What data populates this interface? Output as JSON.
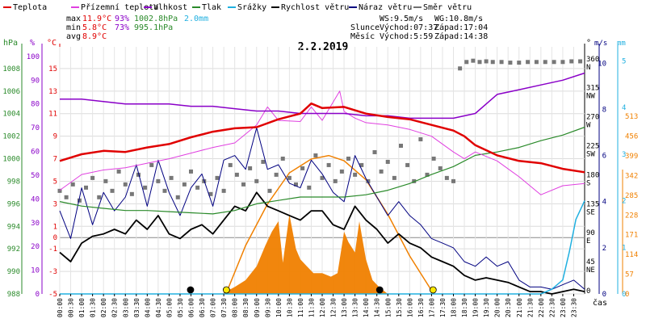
{
  "chart_data": {
    "type": "line",
    "title": "2.2.2019",
    "xlabel": "čas",
    "legend": {
      "placement": "top",
      "items": [
        {
          "label": "Teplota",
          "color": "#e00000"
        },
        {
          "label": "Přízemní teplota",
          "color": "#e040e0"
        },
        {
          "label": "Vlhkost",
          "color": "#8a00c8"
        },
        {
          "label": "Tlak",
          "color": "#2a8a2a"
        },
        {
          "label": "Srážky",
          "color": "#20b0e0"
        },
        {
          "label": "Rychlost větru",
          "color": "#000000"
        },
        {
          "label": "Náraz větru",
          "color": "#000080"
        },
        {
          "label": "Směr větru",
          "color": "#707070"
        }
      ]
    },
    "stats": {
      "rows": [
        {
          "label": "max",
          "temp": "11.9°C",
          "hum": "93%",
          "press": "1002.8hPa",
          "rain": "2.0mm"
        },
        {
          "label": "min",
          "temp": "5.8°C",
          "hum": "73%",
          "press": "995.1hPa",
          "rain": ""
        },
        {
          "label": "avg",
          "temp": "8.9°C",
          "hum": "",
          "press": "",
          "rain": ""
        }
      ],
      "wind_speed": "WS:9.5m/s",
      "wind_gust": "WG:10.8m/s",
      "sun_label": "Slunce",
      "sunrise": "Východ:07:37",
      "sunset": "Západ:17:04",
      "moon_label": "Měsíc",
      "moonrise": "Východ:5:59",
      "moonset": "Západ:14:38"
    },
    "axes": {
      "hpa": {
        "unit": "hPa",
        "ticks": [
          "988",
          "990",
          "992",
          "994",
          "996",
          "998",
          "1000",
          "1002",
          "1004",
          "1006",
          "1008"
        ]
      },
      "percent": {
        "unit": "%",
        "ticks": [
          "0",
          "10",
          "20",
          "30",
          "40",
          "50",
          "60",
          "70",
          "80",
          "90",
          "100"
        ]
      },
      "celsius": {
        "unit": "°C",
        "ticks": [
          "-5",
          "-3",
          "-1",
          "0",
          "1",
          "3",
          "5",
          "7",
          "9",
          "11",
          "13",
          "15"
        ]
      },
      "direction": {
        "unit": "°",
        "ticks": [
          "0",
          "45",
          "90",
          "135",
          "180",
          "225",
          "270",
          "315",
          "360"
        ],
        "labels": [
          "",
          "NE",
          "E",
          "SE",
          "S",
          "SW",
          "W",
          "NW",
          "N"
        ]
      },
      "wind": {
        "unit": "m/s",
        "ticks": [
          "0",
          "2",
          "4",
          "6",
          "8",
          "10"
        ]
      },
      "rain_mm": {
        "unit": "mm",
        "ticks": [
          "0",
          "1",
          "2",
          "3",
          "4",
          "5"
        ]
      },
      "radiation": {
        "ticks": [
          "0",
          "57",
          "114",
          "171",
          "228",
          "285",
          "342",
          "399",
          "456",
          "513"
        ]
      }
    },
    "x_ticks": [
      "00:00",
      "00:30",
      "01:00",
      "01:30",
      "02:00",
      "02:30",
      "03:00",
      "03:30",
      "04:00",
      "04:30",
      "05:00",
      "05:30",
      "06:00",
      "06:30",
      "07:00",
      "07:30",
      "08:00",
      "08:30",
      "09:00",
      "09:30",
      "10:00",
      "10:30",
      "11:00",
      "11:30",
      "12:00",
      "12:30",
      "13:00",
      "13:30",
      "14:00",
      "14:30",
      "15:00",
      "15:30",
      "16:00",
      "16:30",
      "17:00",
      "17:30",
      "18:00",
      "18:30",
      "19:00",
      "19:30",
      "20:00",
      "20:30",
      "21:00",
      "21:30",
      "22:00",
      "22:30",
      "23:00",
      "23:30"
    ],
    "x_hours": [
      0,
      0.5,
      1,
      1.5,
      2,
      2.5,
      3,
      3.5,
      4,
      4.5,
      5,
      5.5,
      6,
      6.5,
      7,
      7.5,
      8,
      8.5,
      9,
      9.5,
      10,
      10.5,
      11,
      11.5,
      12,
      12.5,
      13,
      13.5,
      14,
      14.5,
      15,
      15.5,
      16,
      16.5,
      17,
      17.5,
      18,
      18.5,
      19,
      19.5,
      20,
      20.5,
      21,
      21.5,
      22,
      22.5,
      23,
      23.5
    ],
    "series": [
      {
        "name": "Teplota",
        "unit": "°C",
        "color": "#e00000",
        "x": [
          0,
          1,
          2,
          3,
          4,
          5,
          6,
          7,
          8,
          9,
          10,
          11,
          11.5,
          12,
          13,
          13.5,
          14,
          15,
          16,
          17,
          18,
          18.5,
          19,
          20,
          21,
          22,
          23,
          24
        ],
        "values": [
          6.8,
          7.4,
          7.7,
          7.6,
          8.0,
          8.3,
          8.9,
          9.4,
          9.7,
          9.8,
          10.5,
          11.0,
          11.9,
          11.5,
          11.6,
          11.3,
          11.0,
          10.7,
          10.5,
          10.0,
          9.5,
          9.0,
          8.2,
          7.3,
          6.8,
          6.6,
          6.1,
          5.8
        ]
      },
      {
        "name": "Přízemní teplota",
        "unit": "°C",
        "color": "#e040e0",
        "x": [
          0,
          1,
          2,
          3,
          4,
          5,
          6,
          7,
          8,
          9,
          9.5,
          10,
          11,
          11.5,
          12,
          12.8,
          13,
          13.5,
          14,
          15,
          16,
          17,
          18,
          18.5,
          19,
          20,
          21,
          22,
          23,
          24
        ],
        "values": [
          4.2,
          5.6,
          6.0,
          6.2,
          6.6,
          7.0,
          7.5,
          8.0,
          8.4,
          10.0,
          11.6,
          10.4,
          10.3,
          11.6,
          10.4,
          13.0,
          11.2,
          10.6,
          10.2,
          10.0,
          9.6,
          9.0,
          7.6,
          7.0,
          7.6,
          6.8,
          5.4,
          3.8,
          4.6,
          4.8
        ]
      },
      {
        "name": "Vlhkost",
        "unit": "%",
        "color": "#8a00c8",
        "x": [
          0,
          1,
          2,
          3,
          4,
          5,
          6,
          7,
          8,
          9,
          10,
          11,
          12,
          13,
          14,
          15,
          16,
          17,
          18,
          19,
          20,
          21,
          22,
          23,
          24
        ],
        "values": [
          82,
          82,
          81,
          80,
          80,
          80,
          79,
          79,
          78,
          77,
          77,
          76,
          76,
          76,
          75,
          75,
          74,
          74,
          74,
          76,
          84,
          86,
          88,
          90,
          93
        ]
      },
      {
        "name": "Tlak",
        "unit": "hPa",
        "color": "#2a8a2a",
        "x": [
          0,
          1,
          2,
          3,
          4,
          5,
          6,
          7,
          8,
          9,
          10,
          11,
          12,
          13,
          14,
          15,
          16,
          17,
          18,
          19,
          20,
          21,
          22,
          23,
          24
        ],
        "values": [
          996.2,
          995.8,
          995.6,
          995.4,
          995.4,
          995.3,
          995.2,
          995.1,
          995.4,
          996.0,
          996.3,
          996.6,
          996.6,
          996.6,
          996.8,
          997.2,
          997.8,
          998.6,
          999.3,
          1000.3,
          1000.6,
          1001.0,
          1001.6,
          1002.1,
          1002.8
        ]
      },
      {
        "name": "Rychlost větru",
        "unit": "m/s",
        "color": "#000000",
        "x": [
          0,
          0.5,
          1,
          1.5,
          2,
          2.5,
          3,
          3.5,
          4,
          4.5,
          5,
          5.5,
          6,
          6.5,
          7,
          7.5,
          8,
          8.5,
          9,
          9.5,
          10,
          10.5,
          11,
          11.5,
          12,
          12.5,
          13,
          13.5,
          14,
          14.5,
          15,
          15.5,
          16,
          16.5,
          17,
          17.5,
          18,
          18.5,
          19,
          19.5,
          20,
          20.5,
          21,
          21.5,
          22,
          22.5,
          23,
          23.5,
          24
        ],
        "values": [
          1.8,
          1.4,
          2.2,
          2.5,
          2.6,
          2.8,
          2.6,
          3.2,
          2.8,
          3.4,
          2.6,
          2.4,
          2.8,
          3.0,
          2.6,
          3.2,
          3.8,
          3.6,
          4.4,
          3.8,
          3.6,
          3.4,
          3.2,
          3.6,
          3.6,
          3.0,
          2.8,
          3.8,
          3.2,
          2.8,
          2.2,
          2.6,
          2.2,
          2.0,
          1.6,
          1.4,
          1.2,
          0.8,
          0.6,
          0.7,
          0.6,
          0.5,
          0.3,
          0.1,
          0.1,
          0.0,
          0.1,
          0.2,
          0.1
        ]
      },
      {
        "name": "Náraz větru",
        "unit": "m/s",
        "color": "#000080",
        "x": [
          0,
          0.5,
          1,
          1.5,
          2,
          2.5,
          3,
          3.5,
          4,
          4.5,
          5,
          5.5,
          6,
          6.5,
          7,
          7.5,
          8,
          8.5,
          9,
          9.5,
          10,
          10.5,
          11,
          11.5,
          12,
          12.5,
          13,
          13.5,
          14,
          14.5,
          15,
          15.5,
          16,
          16.5,
          17,
          17.5,
          18,
          18.5,
          19,
          19.5,
          20,
          20.5,
          21,
          21.5,
          22,
          22.5,
          23,
          23.5,
          24
        ],
        "values": [
          3.6,
          2.4,
          4.6,
          3.0,
          4.4,
          3.6,
          4.2,
          5.6,
          3.8,
          5.8,
          4.4,
          3.4,
          4.6,
          5.2,
          3.8,
          5.8,
          6.0,
          5.4,
          7.2,
          5.4,
          5.6,
          4.8,
          4.6,
          5.8,
          5.2,
          4.4,
          4.0,
          6.0,
          5.0,
          4.2,
          3.4,
          4.0,
          3.4,
          3.0,
          2.4,
          2.2,
          2.0,
          1.4,
          1.2,
          1.6,
          1.2,
          1.4,
          0.6,
          0.3,
          0.3,
          0.2,
          0.4,
          0.6,
          0.2
        ]
      },
      {
        "name": "Srážky",
        "unit": "mm",
        "color": "#20b0e0",
        "x": [
          0,
          22.0,
          22.5,
          23.0,
          23.3,
          23.6,
          24
        ],
        "values": [
          0,
          0,
          0.1,
          0.3,
          0.9,
          1.6,
          2.0
        ]
      }
    ],
    "wind_direction_points": {
      "unit": "°",
      "x": [
        0,
        0.3,
        0.6,
        0.9,
        1.2,
        1.5,
        1.8,
        2.1,
        2.4,
        2.7,
        3.0,
        3.3,
        3.6,
        3.9,
        4.2,
        4.5,
        4.8,
        5.1,
        5.4,
        5.7,
        6.0,
        6.3,
        6.6,
        6.9,
        7.2,
        7.5,
        7.8,
        8.1,
        8.4,
        8.7,
        9.0,
        9.3,
        9.6,
        9.9,
        10.2,
        10.5,
        10.8,
        11.1,
        11.4,
        11.7,
        12.0,
        12.3,
        12.6,
        12.9,
        13.2,
        13.5,
        13.8,
        14.1,
        14.4,
        14.7,
        15.0,
        15.3,
        15.6,
        15.9,
        16.2,
        16.5,
        16.8,
        17.1,
        17.4,
        17.7,
        18.0,
        18.3,
        18.6,
        18.9,
        19.2,
        19.5,
        19.8,
        20.2,
        20.6,
        21.0,
        21.4,
        21.8,
        22.2,
        22.6,
        23.0,
        23.4,
        23.8
      ],
      "values": [
        160,
        150,
        170,
        145,
        165,
        180,
        150,
        175,
        160,
        190,
        170,
        155,
        185,
        165,
        200,
        175,
        160,
        180,
        150,
        170,
        190,
        165,
        175,
        155,
        180,
        160,
        200,
        185,
        170,
        195,
        175,
        205,
        160,
        185,
        210,
        180,
        170,
        195,
        165,
        215,
        180,
        200,
        175,
        190,
        210,
        185,
        200,
        175,
        220,
        190,
        205,
        180,
        230,
        200,
        175,
        240,
        185,
        210,
        195,
        180,
        175,
        350,
        360,
        362,
        360,
        361,
        360,
        360,
        359,
        359,
        360,
        360,
        360,
        360,
        360,
        361,
        361
      ]
    },
    "solar_radiation": {
      "unit": "W/m²",
      "x": [
        7.4,
        8.0,
        8.5,
        9.0,
        9.4,
        9.7,
        10.0,
        10.2,
        10.5,
        10.8,
        11.0,
        11.3,
        11.6,
        12.0,
        12.4,
        12.7,
        13.0,
        13.2,
        13.5,
        13.7,
        14.0,
        14.3,
        14.6,
        15.0
      ],
      "values": [
        0,
        20,
        40,
        80,
        140,
        180,
        210,
        90,
        230,
        130,
        100,
        80,
        60,
        60,
        50,
        60,
        180,
        150,
        120,
        210,
        100,
        40,
        20,
        0
      ]
    },
    "solar_elevation_curve": {
      "x": [
        7.6,
        8.5,
        9.5,
        10.5,
        11.5,
        12.3,
        13.0,
        14.0,
        15.0,
        16.0,
        17.1
      ],
      "values": [
        0,
        140,
        260,
        350,
        390,
        400,
        385,
        330,
        230,
        110,
        0
      ]
    },
    "sun_events": [
      {
        "name": "sunrise",
        "hour": 7.62,
        "color": "#ffe800"
      },
      {
        "name": "sunset",
        "hour": 17.07,
        "color": "#ffe800"
      },
      {
        "name": "moonrise",
        "hour": 5.98,
        "color": "#000000"
      },
      {
        "name": "moonset",
        "hour": 14.63,
        "color": "#000000"
      }
    ]
  }
}
